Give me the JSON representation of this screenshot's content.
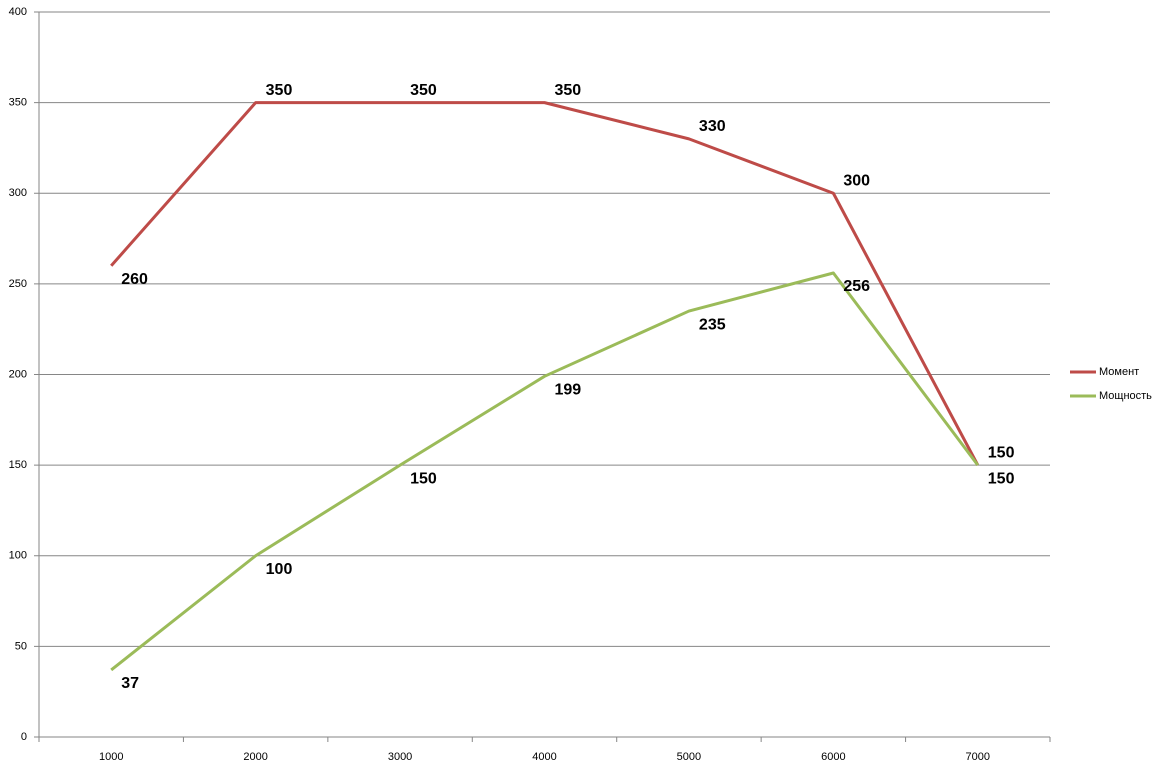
{
  "chart_data": {
    "type": "line",
    "categories": [
      "1000",
      "2000",
      "3000",
      "4000",
      "5000",
      "6000",
      "7000"
    ],
    "series": [
      {
        "name": "Момент",
        "color": "#be4b48",
        "values": [
          260,
          350,
          350,
          350,
          330,
          300,
          150
        ]
      },
      {
        "name": "Мощность",
        "color": "#9bbb59",
        "values": [
          37,
          100,
          150,
          199,
          235,
          256,
          150
        ]
      }
    ],
    "ylim": [
      0,
      400
    ],
    "yticks": [
      0,
      50,
      100,
      150,
      200,
      250,
      300,
      350,
      400
    ],
    "grid": true,
    "legend": "right"
  }
}
